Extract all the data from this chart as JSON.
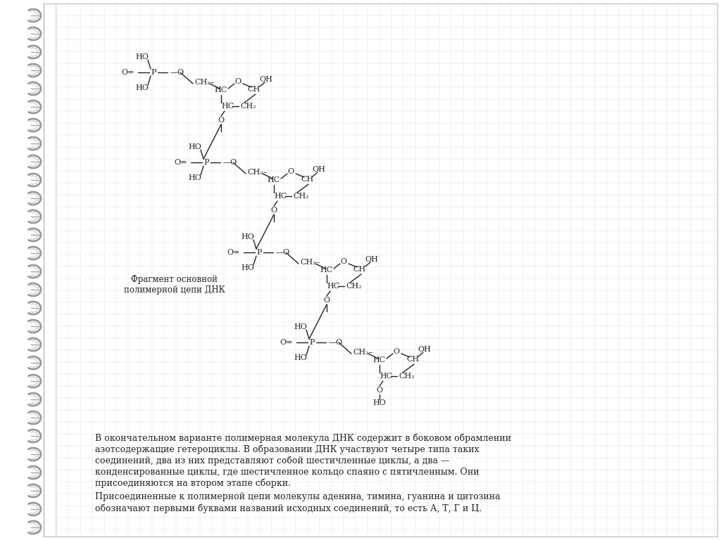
{
  "bg_color": "#ffffff",
  "page_bg": "#ffffff",
  "grid_color": "#c8d4e8",
  "spiral_color": "#888888",
  "molecule_color": "#222222",
  "label_text": "Фрагмент основной\nполимерной цепи ДНК",
  "paragraph1": "В окончательном варианте полимерная молекула ДНК содержит в боковом обрамлении\nазотсодержащие гетероциклы. В образовании ДНК участвуют четыре типа таких\nсоединений, два из них представляют собой шестичленные циклы, а два —\nконденсированные циклы, где шестичленное кольцо спаяно с пятичленным. Они\nприсоединяются на втором этапе сборки.",
  "paragraph2": "Присоединенные к полимерной цепи молекулы аденина, тимина, гуанина и цитозина\nобозначают первыми буквами названий исходных соединений, то есть А, Т, Г и Ц."
}
